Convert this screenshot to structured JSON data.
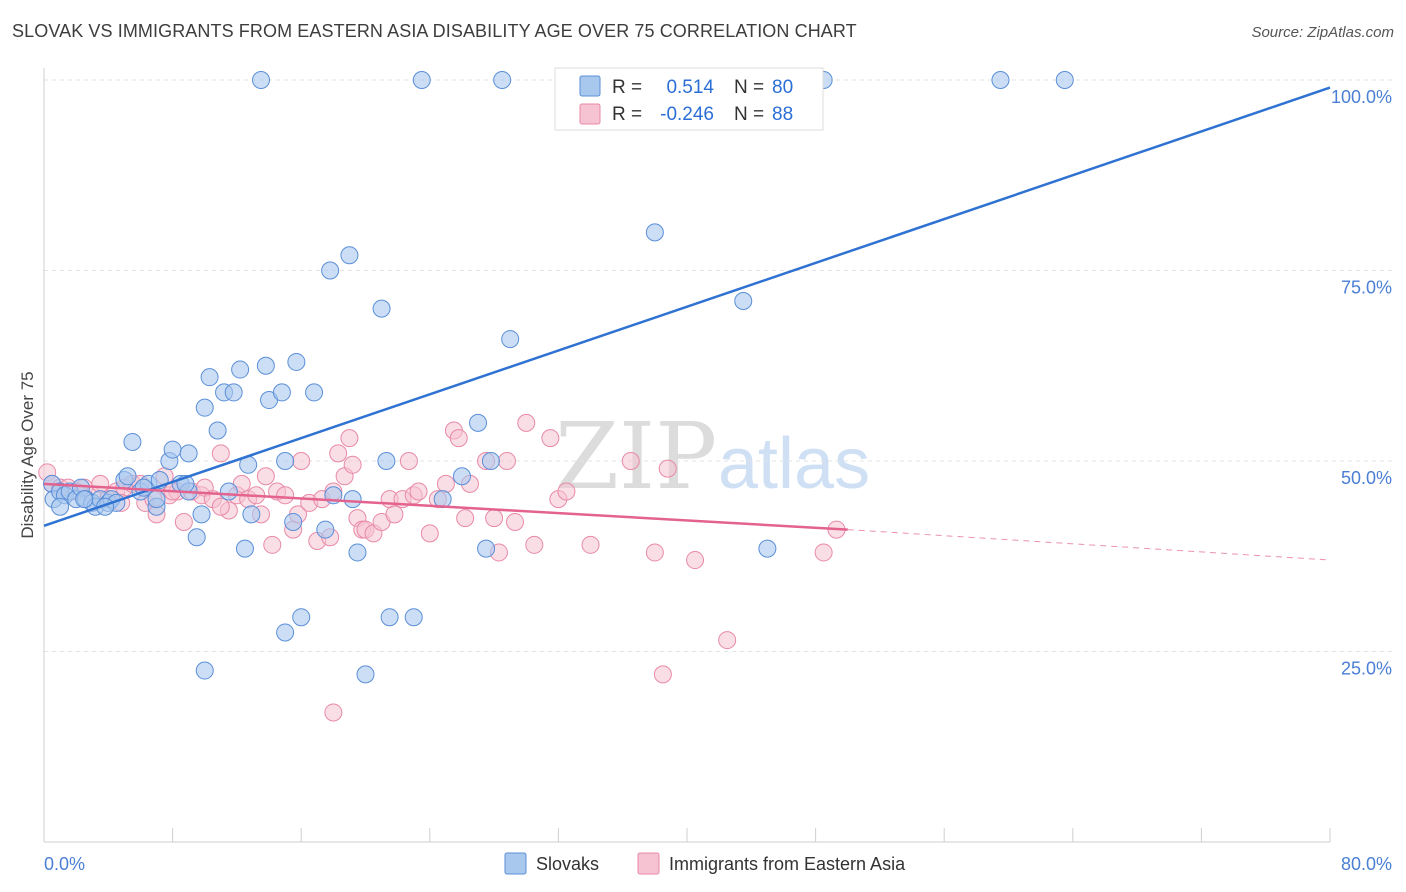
{
  "title": "SLOVAK VS IMMIGRANTS FROM EASTERN ASIA DISABILITY AGE OVER 75 CORRELATION CHART",
  "source": "Source: ZipAtlas.com",
  "watermark": {
    "zip": "ZIP",
    "atlas": "atlas"
  },
  "colors": {
    "blue_fill": "#a9c8ee",
    "blue_stroke": "#5b8fd8",
    "blue_line": "#2f72d2",
    "pink_fill": "#f6c3d2",
    "pink_stroke": "#e88aa7",
    "pink_line": "#e3628e",
    "grid": "#e3e3e3",
    "tick_label": "#4a7fd4"
  },
  "legend": {
    "r_label": "R =",
    "n_label": "N =",
    "series": [
      {
        "r": "0.514",
        "n": "80"
      },
      {
        "r": "-0.246",
        "n": "88"
      }
    ]
  },
  "bottom_legend": [
    "Slovaks",
    "Immigrants from Eastern Asia"
  ],
  "chart_data": {
    "type": "scatter",
    "title": "SLOVAK VS IMMIGRANTS FROM EASTERN ASIA DISABILITY AGE OVER 75 CORRELATION CHART",
    "xlabel": "",
    "ylabel": "Disability Age Over 75",
    "xlim": [
      0,
      80
    ],
    "ylim": [
      0,
      100
    ],
    "x_tick_labels": [
      "0.0%",
      "80.0%"
    ],
    "y_tick_labels": [
      "100.0%",
      "75.0%",
      "50.0%",
      "25.0%"
    ],
    "y_ticks": [
      100,
      75,
      50,
      25
    ],
    "grid": true,
    "legend_position": "top-center",
    "series": [
      {
        "name": "Slovaks",
        "r": 0.514,
        "n": 80,
        "trend": {
          "x": [
            0,
            80
          ],
          "y": [
            41.5,
            99
          ]
        },
        "points": [
          [
            0.5,
            47
          ],
          [
            0.6,
            45
          ],
          [
            1.0,
            46
          ],
          [
            1.3,
            45.5
          ],
          [
            1.6,
            46
          ],
          [
            2.0,
            45
          ],
          [
            2.3,
            46.5
          ],
          [
            2.6,
            45
          ],
          [
            3.0,
            44.5
          ],
          [
            3.2,
            44
          ],
          [
            3.5,
            45
          ],
          [
            4.0,
            44.5
          ],
          [
            4.2,
            45
          ],
          [
            4.5,
            44.5
          ],
          [
            5.0,
            47.5
          ],
          [
            5.2,
            48
          ],
          [
            5.5,
            52.5
          ],
          [
            6.0,
            46
          ],
          [
            6.5,
            47
          ],
          [
            7.0,
            44
          ],
          [
            7.2,
            47.5
          ],
          [
            7.8,
            50
          ],
          [
            8.0,
            51.5
          ],
          [
            8.5,
            47
          ],
          [
            9.0,
            46
          ],
          [
            9.5,
            40
          ],
          [
            9.8,
            43
          ],
          [
            10.0,
            57
          ],
          [
            10.3,
            61
          ],
          [
            10.8,
            54
          ],
          [
            11.2,
            59
          ],
          [
            11.8,
            59
          ],
          [
            12.2,
            62
          ],
          [
            12.5,
            38.5
          ],
          [
            12.7,
            49.5
          ],
          [
            12.9,
            43
          ],
          [
            13.5,
            100
          ],
          [
            13.8,
            62.5
          ],
          [
            14.0,
            58
          ],
          [
            14.8,
            59
          ],
          [
            15.0,
            50
          ],
          [
            15.5,
            42
          ],
          [
            15.7,
            63
          ],
          [
            16.0,
            29.5
          ],
          [
            16.8,
            59
          ],
          [
            17.5,
            41
          ],
          [
            17.8,
            75
          ],
          [
            18.0,
            45.5
          ],
          [
            19.0,
            77
          ],
          [
            19.2,
            45
          ],
          [
            19.5,
            38
          ],
          [
            20.0,
            22
          ],
          [
            21.0,
            70
          ],
          [
            21.3,
            50
          ],
          [
            21.5,
            29.5
          ],
          [
            23.0,
            29.5
          ],
          [
            23.5,
            100
          ],
          [
            24.8,
            45
          ],
          [
            26.0,
            48
          ],
          [
            27.0,
            55
          ],
          [
            27.5,
            38.5
          ],
          [
            27.8,
            50
          ],
          [
            28.5,
            100
          ],
          [
            29.0,
            66
          ],
          [
            38.0,
            80
          ],
          [
            43.5,
            71
          ],
          [
            45.0,
            38.5
          ],
          [
            48.5,
            100
          ],
          [
            59.5,
            100
          ],
          [
            63.5,
            100
          ],
          [
            10.0,
            22.5
          ],
          [
            9.0,
            51
          ],
          [
            15.0,
            27.5
          ],
          [
            7.0,
            45
          ],
          [
            1.0,
            44
          ],
          [
            2.5,
            45
          ],
          [
            3.8,
            44
          ],
          [
            6.2,
            46.5
          ],
          [
            11.5,
            46
          ],
          [
            8.8,
            47
          ]
        ]
      },
      {
        "name": "Immigrants from Eastern Asia",
        "r": -0.246,
        "n": 88,
        "trend": {
          "x": [
            0,
            50
          ],
          "y": [
            47,
            41
          ]
        },
        "trend_dashed": {
          "x": [
            50,
            80
          ],
          "y": [
            41,
            37
          ]
        },
        "points": [
          [
            0.2,
            48.5
          ],
          [
            0.5,
            47
          ],
          [
            1.0,
            46.5
          ],
          [
            1.5,
            46.5
          ],
          [
            2.0,
            46
          ],
          [
            2.5,
            46.5
          ],
          [
            3.0,
            45.5
          ],
          [
            3.5,
            47
          ],
          [
            4.0,
            45
          ],
          [
            4.5,
            46
          ],
          [
            5.0,
            46.5
          ],
          [
            5.5,
            47
          ],
          [
            6.0,
            47
          ],
          [
            6.3,
            44.5
          ],
          [
            6.8,
            45
          ],
          [
            7.0,
            43
          ],
          [
            7.5,
            48
          ],
          [
            7.8,
            45.5
          ],
          [
            8.3,
            46
          ],
          [
            8.7,
            42
          ],
          [
            9.2,
            46
          ],
          [
            9.8,
            45.5
          ],
          [
            10.0,
            46.5
          ],
          [
            10.5,
            45
          ],
          [
            11.0,
            51
          ],
          [
            11.5,
            43.5
          ],
          [
            12.0,
            45.5
          ],
          [
            12.3,
            47
          ],
          [
            12.7,
            45
          ],
          [
            13.2,
            45.5
          ],
          [
            13.5,
            43
          ],
          [
            13.8,
            48
          ],
          [
            14.2,
            39
          ],
          [
            14.5,
            46
          ],
          [
            15.0,
            45.5
          ],
          [
            15.5,
            41
          ],
          [
            15.8,
            43
          ],
          [
            16.0,
            50
          ],
          [
            16.5,
            44.5
          ],
          [
            17.0,
            39.5
          ],
          [
            17.3,
            45
          ],
          [
            17.8,
            40
          ],
          [
            18.0,
            46
          ],
          [
            18.3,
            51
          ],
          [
            18.7,
            48
          ],
          [
            19.0,
            53
          ],
          [
            19.2,
            49.5
          ],
          [
            19.5,
            42.5
          ],
          [
            19.8,
            41
          ],
          [
            20.0,
            41
          ],
          [
            20.5,
            40.5
          ],
          [
            21.0,
            42
          ],
          [
            21.5,
            45
          ],
          [
            21.8,
            43
          ],
          [
            22.3,
            45
          ],
          [
            22.7,
            50
          ],
          [
            23.0,
            45.5
          ],
          [
            23.3,
            46
          ],
          [
            24.0,
            40.5
          ],
          [
            24.5,
            45
          ],
          [
            25.0,
            47
          ],
          [
            25.5,
            54
          ],
          [
            25.8,
            53
          ],
          [
            26.2,
            42.5
          ],
          [
            26.5,
            47
          ],
          [
            27.5,
            50
          ],
          [
            28.0,
            42.5
          ],
          [
            28.3,
            38
          ],
          [
            28.8,
            50
          ],
          [
            29.3,
            42
          ],
          [
            30.0,
            55
          ],
          [
            30.5,
            39
          ],
          [
            31.5,
            53
          ],
          [
            32.0,
            45
          ],
          [
            32.5,
            46
          ],
          [
            34.0,
            39
          ],
          [
            36.5,
            50
          ],
          [
            38.0,
            38
          ],
          [
            38.5,
            22
          ],
          [
            38.8,
            49
          ],
          [
            40.5,
            37
          ],
          [
            42.5,
            26.5
          ],
          [
            48.5,
            38
          ],
          [
            49.3,
            41
          ],
          [
            18.0,
            17
          ],
          [
            11.0,
            44
          ],
          [
            4.8,
            44.5
          ],
          [
            8.0,
            46
          ]
        ]
      }
    ]
  }
}
